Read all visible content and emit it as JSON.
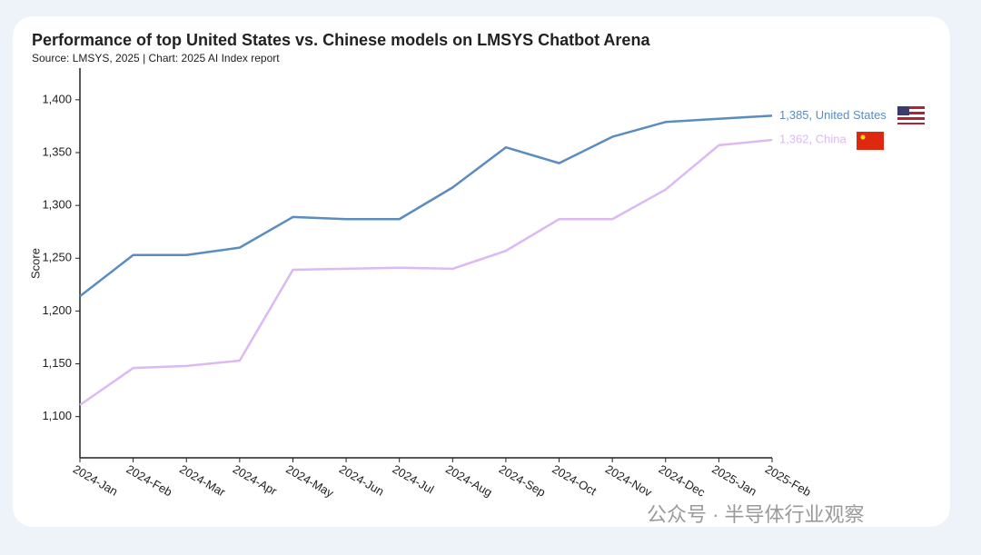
{
  "chart_data": {
    "type": "line",
    "title": "Performance of top United States vs. Chinese models on LMSYS Chatbot Arena",
    "subtitle": "Source: LMSYS, 2025 | Chart: 2025 AI Index report",
    "y_label": "Score",
    "categories": [
      "2024-Jan",
      "2024-Feb",
      "2024-Mar",
      "2024-Apr",
      "2024-May",
      "2024-Jun",
      "2024-Jul",
      "2024-Aug",
      "2024-Sep",
      "2024-Oct",
      "2024-Nov",
      "2024-Dec",
      "2025-Jan",
      "2025-Feb"
    ],
    "series": [
      {
        "name": "1,385, United States",
        "color": "#5b8cbf",
        "values": [
          1214,
          1253,
          1253,
          1260,
          1289,
          1287,
          1287,
          1317,
          1355,
          1340,
          1365,
          1379,
          1382,
          1385
        ]
      },
      {
        "name": "1,362, China",
        "color": "#dcb9f2",
        "values": [
          1111,
          1146,
          1148,
          1153,
          1239,
          1240,
          1241,
          1240,
          1257,
          1287,
          1287,
          1315,
          1357,
          1362
        ]
      }
    ],
    "ylim": [
      1061,
      1430
    ],
    "yticks": [
      {
        "value": 1100,
        "label": "1,100"
      },
      {
        "value": 1150,
        "label": "1,150"
      },
      {
        "value": 1200,
        "label": "1,200"
      },
      {
        "value": 1250,
        "label": "1,250"
      },
      {
        "value": 1300,
        "label": "1,300"
      },
      {
        "value": 1350,
        "label": "1,350"
      },
      {
        "value": 1400,
        "label": "1,400"
      }
    ]
  },
  "watermark": "公众号 · 半导体行业观察"
}
